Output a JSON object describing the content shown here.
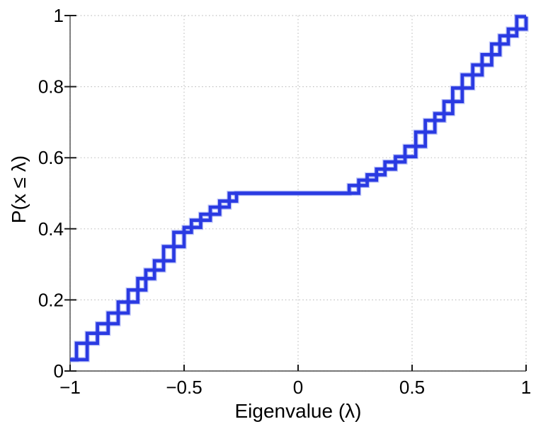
{
  "chart_data": {
    "type": "line",
    "subtype": "empirical-cdf-stairs",
    "title": "",
    "xlabel": "Eigenvalue (λ)",
    "ylabel": "P(x ≤ λ)",
    "xlim": [
      -1,
      1
    ],
    "ylim": [
      0,
      1
    ],
    "x_ticks": [
      -1,
      -0.5,
      0,
      0.5,
      1
    ],
    "x_tick_labels": [
      "−1",
      "−0.5",
      "0",
      "0.5",
      "1"
    ],
    "y_ticks": [
      0,
      0.2,
      0.4,
      0.6,
      0.8,
      1
    ],
    "y_tick_labels": [
      "0",
      "0.2",
      "0.4",
      "0.6",
      "0.8",
      "1"
    ],
    "grid": "dotted",
    "legend": "none",
    "colors": {
      "line": "#2a3ae2",
      "line_halo": "#7080f0",
      "grid": "#c0c0c0",
      "axis": "#4a4a4a",
      "tick": "#1a1a1a",
      "text": "#000000",
      "background": "#ffffff"
    },
    "series": [
      {
        "name": "eigenvalue-cdf",
        "style": "double-staircase",
        "points": [
          [
            -1.0,
            0.032
          ],
          [
            -0.972,
            0.032
          ],
          [
            -0.925,
            0.078
          ],
          [
            -0.88,
            0.106
          ],
          [
            -0.833,
            0.133
          ],
          [
            -0.789,
            0.163
          ],
          [
            -0.745,
            0.194
          ],
          [
            -0.703,
            0.228
          ],
          [
            -0.668,
            0.26
          ],
          [
            -0.63,
            0.284
          ],
          [
            -0.59,
            0.31
          ],
          [
            -0.545,
            0.35
          ],
          [
            -0.5,
            0.39
          ],
          [
            -0.468,
            0.404
          ],
          [
            -0.427,
            0.424
          ],
          [
            -0.385,
            0.441
          ],
          [
            -0.344,
            0.461
          ],
          [
            -0.302,
            0.478
          ],
          [
            -0.27,
            0.5
          ],
          [
            0.224,
            0.5
          ],
          [
            0.266,
            0.522
          ],
          [
            0.303,
            0.537
          ],
          [
            0.344,
            0.552
          ],
          [
            0.381,
            0.568
          ],
          [
            0.427,
            0.588
          ],
          [
            0.469,
            0.603
          ],
          [
            0.516,
            0.632
          ],
          [
            0.558,
            0.672
          ],
          [
            0.6,
            0.705
          ],
          [
            0.64,
            0.724
          ],
          [
            0.678,
            0.758
          ],
          [
            0.72,
            0.796
          ],
          [
            0.766,
            0.833
          ],
          [
            0.807,
            0.861
          ],
          [
            0.849,
            0.89
          ],
          [
            0.885,
            0.92
          ],
          [
            0.922,
            0.943
          ],
          [
            0.959,
            0.962
          ],
          [
            1.0,
            0.997
          ]
        ]
      }
    ]
  }
}
